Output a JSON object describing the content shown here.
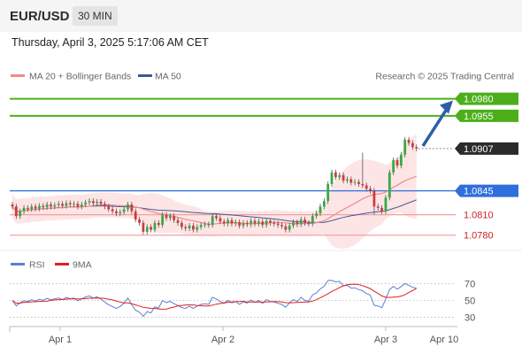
{
  "header": {
    "symbol": "EUR/USD",
    "timeframe": "30 MIN"
  },
  "timestamp": "Thursday, April 3, 2025 5:17:06 AM CET",
  "legend": {
    "items": [
      {
        "label": "MA 20 + Bollinger Bands",
        "color": "#f08a8a"
      },
      {
        "label": "MA 50",
        "color": "#3b5998"
      }
    ],
    "credit": "Research © 2025 Trading Central"
  },
  "rsi_legend": {
    "items": [
      {
        "label": "RSI",
        "color": "#5b7fd6"
      },
      {
        "label": "9MA",
        "color": "#e02020"
      }
    ]
  },
  "chart_data": {
    "type": "candlestick",
    "ylim": [
      1.0768,
      1.0995
    ],
    "levels": [
      {
        "value": 1.098,
        "label": "1.0980",
        "kind": "resistance",
        "color": "#4caf1a"
      },
      {
        "value": 1.0955,
        "label": "1.0955",
        "kind": "resistance",
        "color": "#4caf1a"
      },
      {
        "value": 1.0907,
        "label": "1.0907",
        "kind": "last-price",
        "color": "#222222"
      },
      {
        "value": 1.0845,
        "label": "1.0845",
        "kind": "pivot",
        "color": "#2f6fdb"
      },
      {
        "value": 1.081,
        "label": "1.0810",
        "kind": "support",
        "color": "#f3a0a0"
      },
      {
        "value": 1.078,
        "label": "1.0780",
        "kind": "support",
        "color": "#f3a0a0"
      }
    ],
    "x_ticks": [
      "Apr 1",
      "Apr 2",
      "Apr 3",
      "Apr 10"
    ],
    "rsi": {
      "ylim": [
        22,
        78
      ],
      "levels": [
        70,
        50,
        30
      ]
    },
    "closes": [
      1.0822,
      1.0808,
      1.0815,
      1.082,
      1.0818,
      1.0822,
      1.0819,
      1.0823,
      1.0821,
      1.0825,
      1.0822,
      1.0824,
      1.0826,
      1.0823,
      1.0827,
      1.0825,
      1.0826,
      1.0822,
      1.0825,
      1.0828,
      1.083,
      1.0827,
      1.0829,
      1.0826,
      1.0822,
      1.0818,
      1.0815,
      1.0812,
      1.0814,
      1.0818,
      1.0825,
      1.0815,
      1.0803,
      1.0798,
      1.0785,
      1.0792,
      1.0788,
      1.0798,
      1.0795,
      1.081,
      1.0805,
      1.0808,
      1.0802,
      1.0798,
      1.0792,
      1.079,
      1.0794,
      1.0788,
      1.0792,
      1.0795,
      1.0796,
      1.0795,
      1.0808,
      1.0805,
      1.08,
      1.0797,
      1.0802,
      1.0797,
      1.0799,
      1.0794,
      1.0798,
      1.0796,
      1.0801,
      1.0797,
      1.08,
      1.0795,
      1.0801,
      1.0798,
      1.0797,
      1.0795,
      1.0793,
      1.0788,
      1.0794,
      1.0799,
      1.0796,
      1.0803,
      1.0798,
      1.0797,
      1.0808,
      1.0812,
      1.0822,
      1.083,
      1.0855,
      1.0872,
      1.0865,
      1.0868,
      1.086,
      1.0862,
      1.0857,
      1.0858,
      1.0855,
      1.0853,
      1.0848,
      1.0845,
      1.0822,
      1.082,
      1.0815,
      1.0835,
      1.0872,
      1.089,
      1.0882,
      1.0898,
      1.092,
      1.0915,
      1.0909,
      1.0907
    ]
  }
}
